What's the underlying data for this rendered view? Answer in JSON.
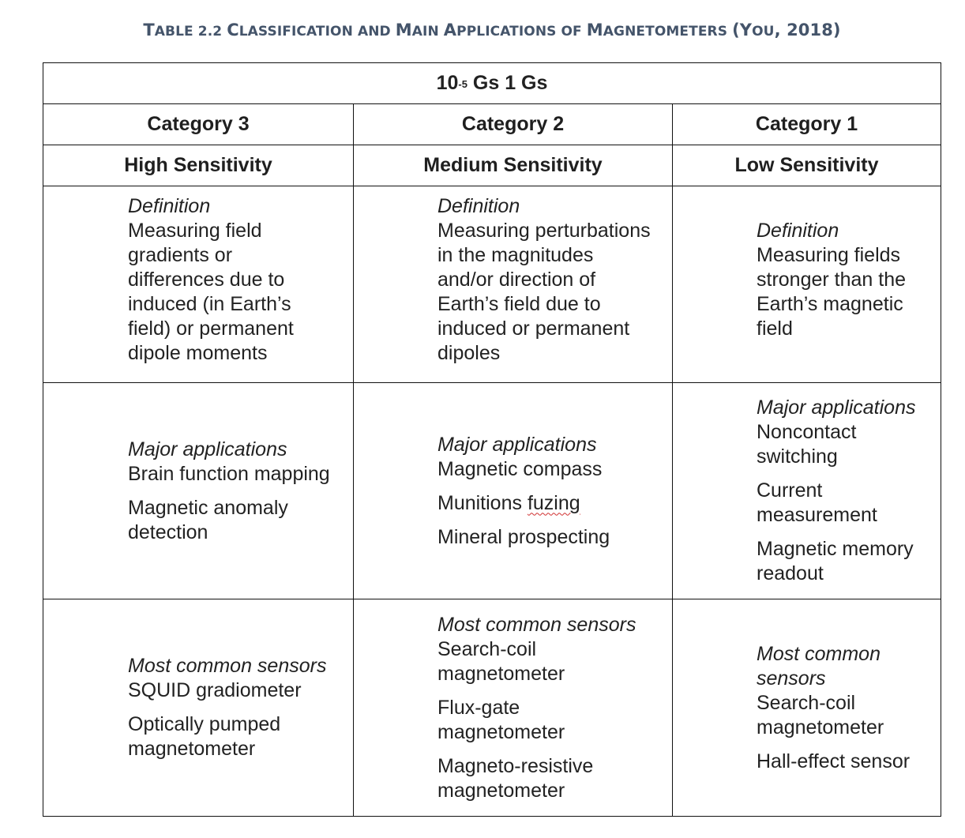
{
  "caption": {
    "t1": "T",
    "w1": "ABLE 2.2 ",
    "t2": "C",
    "w2": "LASSIFICATION AND ",
    "t3": "M",
    "w3": "AIN ",
    "t4": "A",
    "w4": "PPLICATIONS OF ",
    "t5": "M",
    "w5": "AGNETOMETERS ",
    "t6": "(Y",
    "w6": "OU",
    "t7": ", 2018)"
  },
  "range": {
    "base": "10",
    "exp": "-5",
    "rest": " Gs 1 Gs"
  },
  "categories": [
    {
      "name": "Category 3",
      "sensitivity": "High Sensitivity",
      "definition_head": "Definition",
      "definition": [
        "Measuring field",
        "gradients or",
        "differences due to",
        "induced (in Earth’s",
        "field) or permanent",
        "dipole moments"
      ],
      "applications_head": "Major applications",
      "applications": [
        "Brain function mapping",
        "Magnetic anomaly detection"
      ],
      "sensors_head": "Most common sensors",
      "sensors": [
        "SQUID gradiometer",
        "Optically pumped magnetometer"
      ]
    },
    {
      "name": "Category 2",
      "sensitivity": "Medium Sensitivity",
      "definition_head": "Definition",
      "definition": [
        "Measuring perturbations",
        "in the magnitudes",
        "and/or direction of",
        "Earth’s field due to",
        "induced or permanent",
        "dipoles"
      ],
      "applications_head": "Major applications",
      "applications": [
        "Magnetic compass",
        "Munitions ",
        "Mineral prospecting"
      ],
      "applications_fuzing": "fuzing",
      "sensors_head": "Most common sensors",
      "sensors": [
        "Search-coil magnetometer",
        "Flux-gate magnetometer",
        "Magneto-resistive magnetometer"
      ]
    },
    {
      "name": "Category 1",
      "sensitivity": "Low Sensitivity",
      "definition_head": "Definition",
      "definition": [
        "Measuring fields",
        "stronger than the",
        "Earth’s magnetic",
        "field"
      ],
      "applications_head": "Major applications",
      "applications": [
        "Noncontact switching",
        "Current measurement",
        "Magnetic memory readout"
      ],
      "sensors_head": "Most common sensors",
      "sensors": [
        "Search-coil magnetometer",
        "Hall-effect sensor"
      ]
    }
  ]
}
